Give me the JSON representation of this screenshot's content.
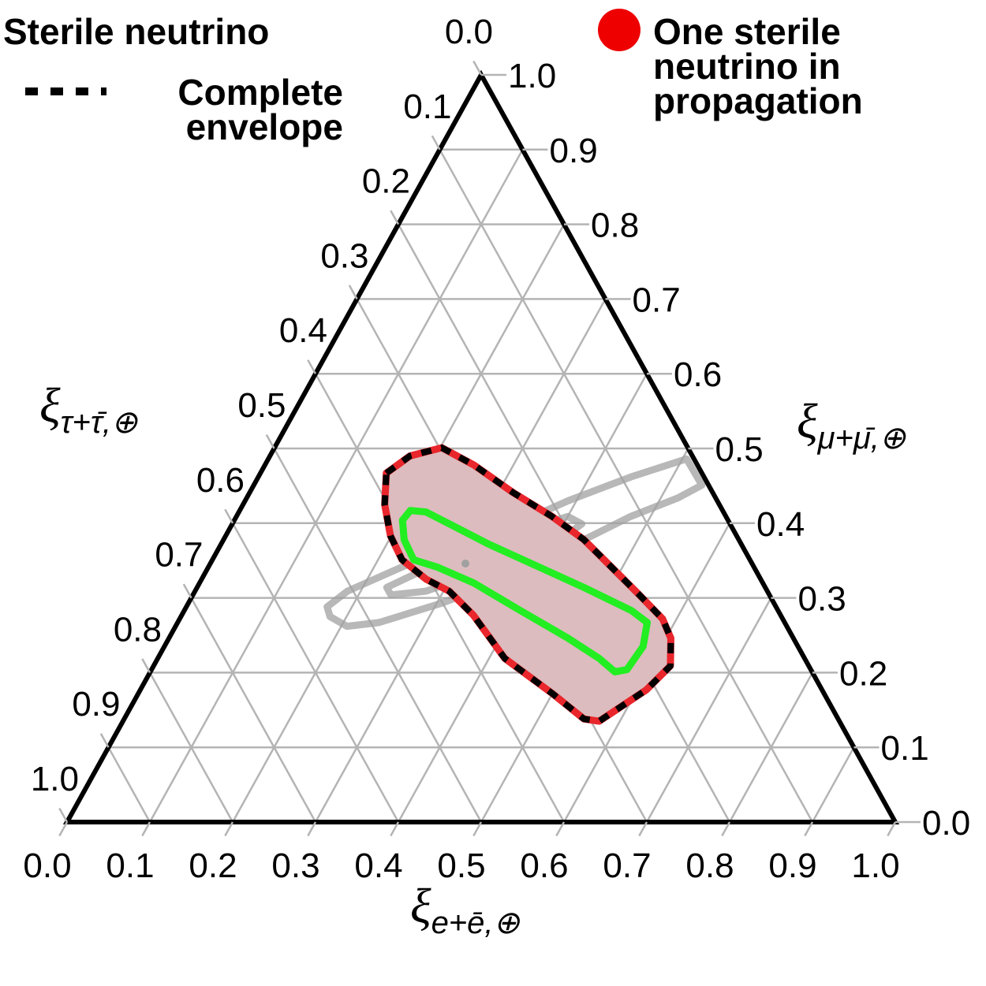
{
  "chart_data": {
    "type": "ternary",
    "legend_title": "Sterile neutrino",
    "axes": {
      "bottom": {
        "symbol": "ξ",
        "subscript": "e+ē,⊕"
      },
      "right": {
        "symbol": "ξ",
        "subscript": "μ+μ̄,⊕"
      },
      "left": {
        "symbol": "ξ",
        "subscript": "τ+τ̄,⊕"
      }
    },
    "e_ticks": [
      {
        "value": 0,
        "label": "0.0"
      },
      0.1,
      0.2,
      0.3,
      0.4,
      0.5,
      0.6,
      0.7,
      0.8,
      0.9,
      {
        "value": 1,
        "label": "1.0"
      }
    ],
    "mu_ticks": [
      {
        "value": 0,
        "label": "0.0"
      },
      0.1,
      0.2,
      0.3,
      0.4,
      0.5,
      0.6,
      0.7,
      0.8,
      0.9,
      {
        "value": 1,
        "label": "1.0"
      }
    ],
    "tau_ticks": [
      {
        "value": 0,
        "label": "0.0"
      },
      0.1,
      0.2,
      0.3,
      0.4,
      0.5,
      0.6,
      0.7,
      0.8,
      0.9,
      {
        "value": 1,
        "label": "1.0"
      }
    ],
    "grid": true,
    "series": [
      {
        "color": "#a0a0a0",
        "closed": true,
        "e": [
          0.17,
          0.184,
          0.241,
          0.318,
          0.39,
          0.45,
          0.505,
          0.541,
          0.521,
          0.476,
          0.421,
          0.366,
          0.306,
          0.243,
          0.207,
          0.18
        ],
        "mu": [
          0.288,
          0.309,
          0.346,
          0.383,
          0.43,
          0.462,
          0.486,
          0.451,
          0.434,
          0.409,
          0.367,
          0.325,
          0.293,
          0.267,
          0.262,
          0.275
        ]
      },
      {
        "color": "#a0a0a0",
        "closed": true,
        "e": [
          0.229,
          0.264,
          0.338,
          0.4,
          0.422,
          0.401,
          0.34,
          0.279,
          0.239
        ],
        "mu": [
          0.314,
          0.339,
          0.381,
          0.409,
          0.399,
          0.37,
          0.339,
          0.309,
          0.304
        ]
      },
      {
        "name": "One sterile neutrino in propagation",
        "color": "#e8262c",
        "fill": "#dcbcbe",
        "closed": true,
        "e": [
          0.152,
          0.169,
          0.202,
          0.252,
          0.318,
          0.381,
          0.435,
          0.487,
          0.539,
          0.583,
          0.606,
          0.624,
          0.611,
          0.593,
          0.575,
          0.555,
          0.5,
          0.419,
          0.352,
          0.307,
          0.271,
          0.229,
          0.199,
          0.171
        ],
        "mu": [
          0.467,
          0.49,
          0.501,
          0.478,
          0.441,
          0.409,
          0.378,
          0.341,
          0.304,
          0.272,
          0.246,
          0.209,
          0.177,
          0.156,
          0.135,
          0.138,
          0.172,
          0.219,
          0.277,
          0.309,
          0.325,
          0.351,
          0.383,
          0.425
        ]
      },
      {
        "name": "Complete envelope",
        "color": "#000000",
        "dashed": true,
        "closed": true,
        "e": [
          0.152,
          0.169,
          0.202,
          0.252,
          0.318,
          0.381,
          0.435,
          0.487,
          0.539,
          0.583,
          0.606,
          0.624,
          0.611,
          0.593,
          0.575,
          0.555,
          0.5,
          0.419,
          0.352,
          0.307,
          0.271,
          0.229,
          0.199,
          0.171
        ],
        "mu": [
          0.467,
          0.49,
          0.501,
          0.478,
          0.441,
          0.409,
          0.378,
          0.341,
          0.304,
          0.272,
          0.246,
          0.209,
          0.177,
          0.156,
          0.135,
          0.138,
          0.172,
          0.219,
          0.277,
          0.309,
          0.325,
          0.351,
          0.383,
          0.425
        ]
      },
      {
        "color": "#22ee22",
        "closed": true,
        "e": [
          0.203,
          0.206,
          0.226,
          0.269,
          0.323,
          0.395,
          0.467,
          0.54,
          0.567,
          0.578,
          0.574,
          0.561,
          0.533,
          0.482,
          0.406,
          0.331,
          0.277,
          0.243,
          0.218
        ],
        "mu": [
          0.404,
          0.417,
          0.415,
          0.396,
          0.372,
          0.343,
          0.314,
          0.283,
          0.267,
          0.235,
          0.204,
          0.201,
          0.219,
          0.246,
          0.283,
          0.32,
          0.341,
          0.351,
          0.378
        ]
      },
      {
        "color": "#a0a0a0",
        "marker": true,
        "e": [
          0.308
        ],
        "mu": [
          0.346
        ]
      }
    ]
  }
}
